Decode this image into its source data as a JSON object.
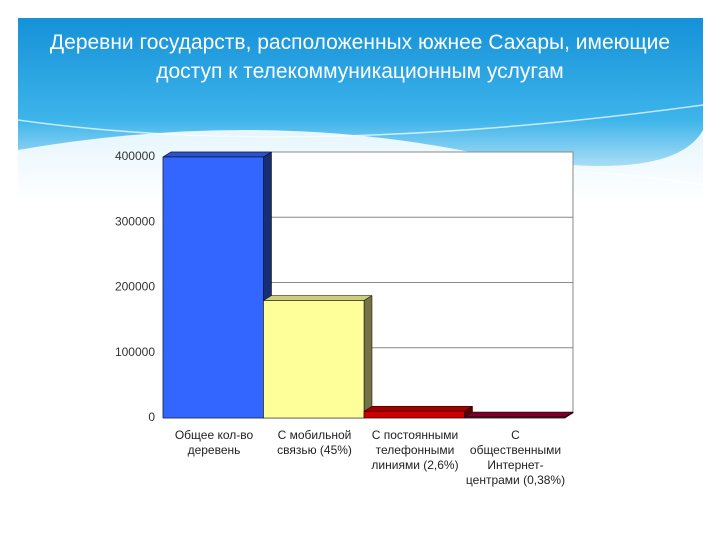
{
  "chart_data": {
    "type": "bar",
    "title": "Деревни государств, расположенных южнее Сахары, имеющие доступ к телекоммуникационным услугам",
    "categories": [
      "Общее кол-во деревень",
      "С мобильной связью (45%)",
      "С постоянными телефонными линиями (2,6%)",
      "С общественными Интернет-центрами (0,38%)"
    ],
    "values": [
      400000,
      180000,
      10400,
      1520
    ],
    "colors": [
      "#3366ff",
      "#ffff99",
      "#cc0000",
      "#990033"
    ],
    "ylim": [
      0,
      400000
    ],
    "yticks": [
      0,
      100000,
      200000,
      300000,
      400000
    ],
    "grid": true
  }
}
